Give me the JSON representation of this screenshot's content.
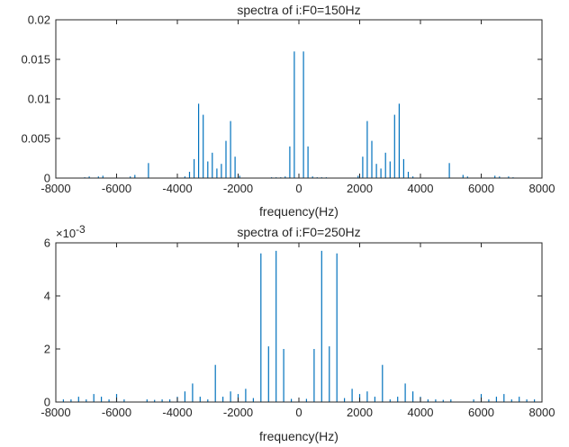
{
  "chart_data": [
    {
      "type": "stem",
      "title": "spectra of i:F0=150Hz",
      "xlabel": "frequency(Hz)",
      "ylabel": "",
      "xlim": [
        -8000,
        8000
      ],
      "ylim": [
        0,
        0.02
      ],
      "xticks": [
        -8000,
        -6000,
        -4000,
        -2000,
        0,
        2000,
        4000,
        6000,
        8000
      ],
      "xtick_labels": [
        "-8000",
        "-6000",
        "-4000",
        "-2000",
        "0",
        "2000",
        "4000",
        "6000",
        "8000"
      ],
      "yticks": [
        0,
        0.005,
        0.01,
        0.015,
        0.02
      ],
      "ytick_labels": [
        "0",
        "0.005",
        "0.01",
        "0.015",
        "0.02"
      ],
      "color": "#0072BD",
      "grid": false,
      "series": [
        {
          "x": [
            150,
            300,
            450,
            600,
            750,
            900,
            1950,
            2100,
            2250,
            2400,
            2550,
            2700,
            2850,
            3000,
            3150,
            3300,
            3450,
            3600,
            3750,
            4950,
            5400,
            5550,
            6450,
            6600,
            6900,
            7050,
            -150,
            -300,
            -450,
            -600,
            -750,
            -900,
            -1950,
            -2100,
            -2250,
            -2400,
            -2550,
            -2700,
            -2850,
            -3000,
            -3150,
            -3300,
            -3450,
            -3600,
            -3750,
            -4950,
            -5400,
            -5550,
            -6450,
            -6600,
            -6900,
            -7050
          ],
          "values": [
            0.016,
            0.004,
            0.0002,
            0.0001,
            0.0001,
            0.0001,
            0.0003,
            0.0027,
            0.0072,
            0.0047,
            0.0018,
            0.0012,
            0.0032,
            0.0021,
            0.008,
            0.0094,
            0.0024,
            0.0008,
            0.0002,
            0.0019,
            0.0004,
            0.0002,
            0.0003,
            0.0002,
            0.0002,
            0.0001,
            0.016,
            0.004,
            0.0002,
            0.0001,
            0.0001,
            0.0001,
            0.0003,
            0.0027,
            0.0072,
            0.0047,
            0.0018,
            0.0012,
            0.0032,
            0.0021,
            0.008,
            0.0094,
            0.0024,
            0.0008,
            0.0002,
            0.0019,
            0.0004,
            0.0002,
            0.0003,
            0.0002,
            0.0002,
            0.0001
          ]
        }
      ]
    },
    {
      "type": "stem",
      "title": "spectra of i:F0=250Hz",
      "xlabel": "frequency(Hz)",
      "ylabel": "",
      "xlim": [
        -8000,
        8000
      ],
      "ylim": [
        0,
        0.006
      ],
      "y_multiplier_label": "×10",
      "y_multiplier_exponent": "-3",
      "xticks": [
        -8000,
        -6000,
        -4000,
        -2000,
        0,
        2000,
        4000,
        6000,
        8000
      ],
      "xtick_labels": [
        "-8000",
        "-6000",
        "-4000",
        "-2000",
        "0",
        "2000",
        "4000",
        "6000",
        "8000"
      ],
      "yticks": [
        0,
        0.002,
        0.004,
        0.006
      ],
      "ytick_labels": [
        "0",
        "2",
        "4",
        "6"
      ],
      "color": "#0072BD",
      "grid": false,
      "series": [
        {
          "x": [
            250,
            500,
            750,
            1000,
            1250,
            1500,
            1750,
            2000,
            2250,
            2500,
            2750,
            3000,
            3250,
            3500,
            3750,
            4000,
            4250,
            4500,
            4750,
            5000,
            5750,
            6000,
            6250,
            6500,
            6750,
            7000,
            7250,
            7500,
            7750,
            -250,
            -500,
            -750,
            -1000,
            -1250,
            -1500,
            -1750,
            -2000,
            -2250,
            -2500,
            -2750,
            -3000,
            -3250,
            -3500,
            -3750,
            -4000,
            -4250,
            -4500,
            -4750,
            -5000,
            -5750,
            -6000,
            -6250,
            -6500,
            -6750,
            -7000,
            -7250,
            -7500,
            -7750
          ],
          "values": [
            0.00012,
            0.002,
            0.0057,
            0.0021,
            0.0056,
            0.00015,
            0.0005,
            0.0003,
            0.0004,
            0.0002,
            0.0014,
            0.0001,
            0.0002,
            0.0007,
            0.0004,
            0.0002,
            0.0001,
            0.0001,
            8e-05,
            0.0001,
            0.0001,
            0.0003,
            0.0001,
            0.0002,
            0.0003,
            0.0001,
            0.0002,
            0.0001,
            0.0001,
            0.00012,
            0.002,
            0.0057,
            0.0021,
            0.0056,
            0.00015,
            0.0005,
            0.0003,
            0.0004,
            0.0002,
            0.0014,
            0.0001,
            0.0002,
            0.0007,
            0.0004,
            0.0002,
            0.0001,
            0.0001,
            8e-05,
            0.0001,
            0.0001,
            0.0003,
            0.0001,
            0.0002,
            0.0003,
            0.0001,
            0.0002,
            0.0001,
            0.0001
          ]
        }
      ]
    }
  ]
}
